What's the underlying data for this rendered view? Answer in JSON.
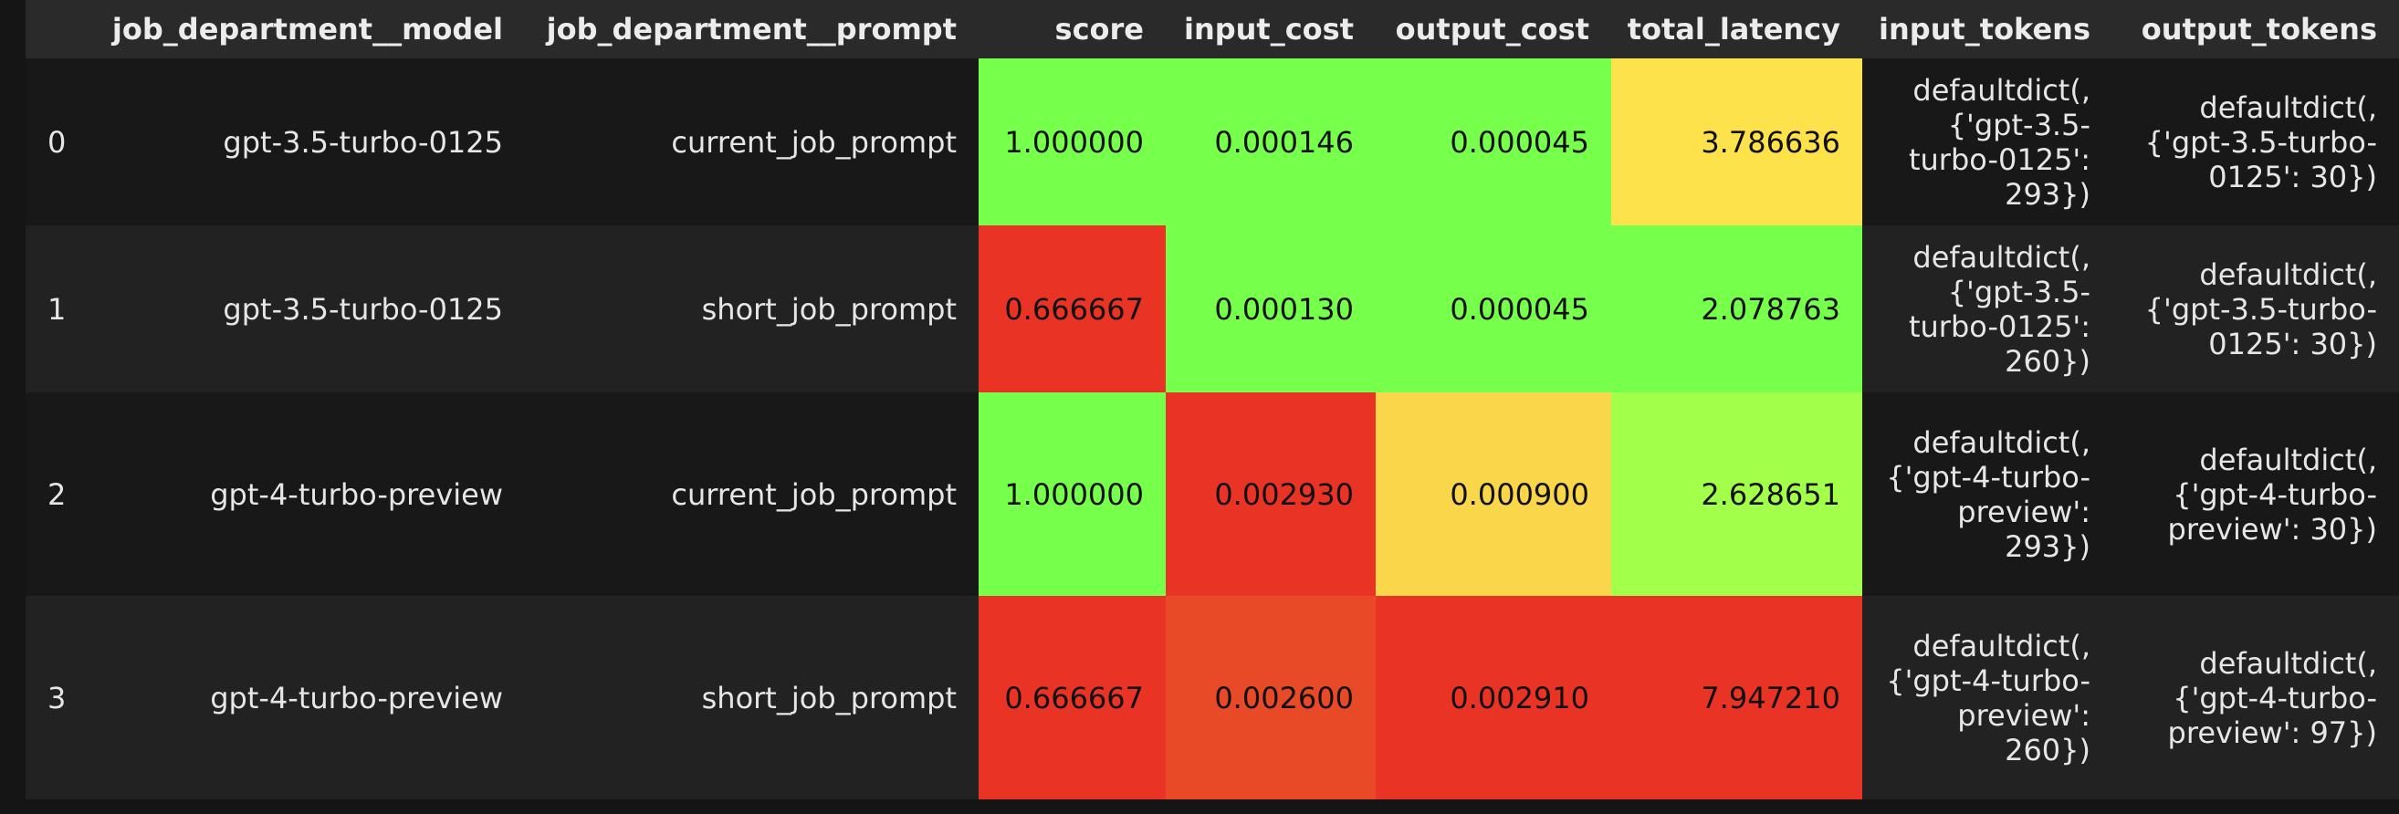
{
  "table": {
    "headers": [
      "",
      "job_department__model",
      "job_department__prompt",
      "score",
      "input_cost",
      "output_cost",
      "total_latency",
      "input_tokens",
      "output_tokens"
    ],
    "rows": [
      {
        "index": "0",
        "model": "gpt-3.5-turbo-0125",
        "prompt": "current_job_prompt",
        "score": "1.000000",
        "input_cost": "0.000146",
        "output_cost": "0.000045",
        "total_latency": "3.786636",
        "input_tokens": "defaultdict(, {'gpt-3.5-turbo-0125': 293})",
        "output_tokens": "defaultdict(, {'gpt-3.5-turbo-0125': 30})"
      },
      {
        "index": "1",
        "model": "gpt-3.5-turbo-0125",
        "prompt": "short_job_prompt",
        "score": "0.666667",
        "input_cost": "0.000130",
        "output_cost": "0.000045",
        "total_latency": "2.078763",
        "input_tokens": "defaultdict(, {'gpt-3.5-turbo-0125': 260})",
        "output_tokens": "defaultdict(, {'gpt-3.5-turbo-0125': 30})"
      },
      {
        "index": "2",
        "model": "gpt-4-turbo-preview",
        "prompt": "current_job_prompt",
        "score": "1.000000",
        "input_cost": "0.002930",
        "output_cost": "0.000900",
        "total_latency": "2.628651",
        "input_tokens": "defaultdict(, {'gpt-4-turbo-preview': 293})",
        "output_tokens": "defaultdict(, {'gpt-4-turbo-preview': 30})"
      },
      {
        "index": "3",
        "model": "gpt-4-turbo-preview",
        "prompt": "short_job_prompt",
        "score": "0.666667",
        "input_cost": "0.002600",
        "output_cost": "0.002910",
        "total_latency": "7.947210",
        "input_tokens": "defaultdict(, {'gpt-4-turbo-preview': 260})",
        "output_tokens": "defaultdict(, {'gpt-4-turbo-preview': 97})"
      }
    ],
    "heat_colors": {
      "score": [
        "#76ff4b",
        "#e93425",
        "#76ff4b",
        "#e93425"
      ],
      "input_cost": [
        "#76ff4b",
        "#76ff4b",
        "#e93425",
        "#e84a28"
      ],
      "output_cost": [
        "#76ff4b",
        "#76ff4b",
        "#fad64a",
        "#e93425"
      ],
      "total_latency": [
        "#fde24b",
        "#76ff4b",
        "#a2ff4a",
        "#e93425"
      ]
    }
  }
}
